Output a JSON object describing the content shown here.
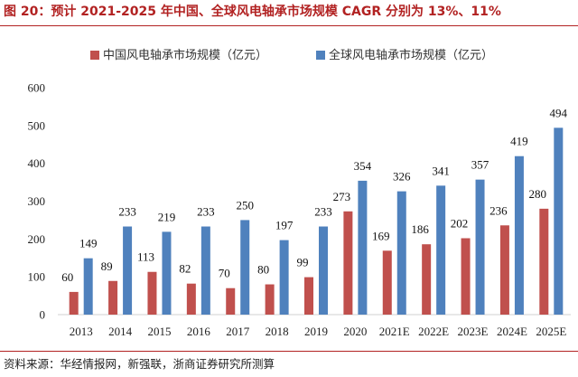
{
  "figure": {
    "title": "图 20：预计 2021-2025 年中国、全球风电轴承市场规模 CAGR 分别为 13%、11%",
    "source": "资料来源：华经情报网，新强联，浙商证券研究所测算"
  },
  "colors": {
    "china": "#c0504d",
    "global": "#4f81bd",
    "title": "#b22222"
  },
  "chart_data": {
    "type": "bar",
    "categories": [
      "2013",
      "2014",
      "2015",
      "2016",
      "2017",
      "2018",
      "2019",
      "2020",
      "2021E",
      "2022E",
      "2023E",
      "2024E",
      "2025E"
    ],
    "series": [
      {
        "name": "中国风电轴承市场规模（亿元）",
        "values": [
          60,
          89,
          113,
          82,
          70,
          80,
          99,
          273,
          169,
          186,
          202,
          236,
          280
        ]
      },
      {
        "name": "全球风电轴承市场规模（亿元）",
        "values": [
          149,
          233,
          219,
          233,
          250,
          197,
          233,
          354,
          326,
          341,
          357,
          419,
          494
        ]
      }
    ],
    "yticks": [
      "0",
      "100",
      "200",
      "300",
      "400",
      "500",
      "600"
    ],
    "ylim": [
      0,
      600
    ],
    "legend": "top",
    "grid": false,
    "data_labels": true
  }
}
